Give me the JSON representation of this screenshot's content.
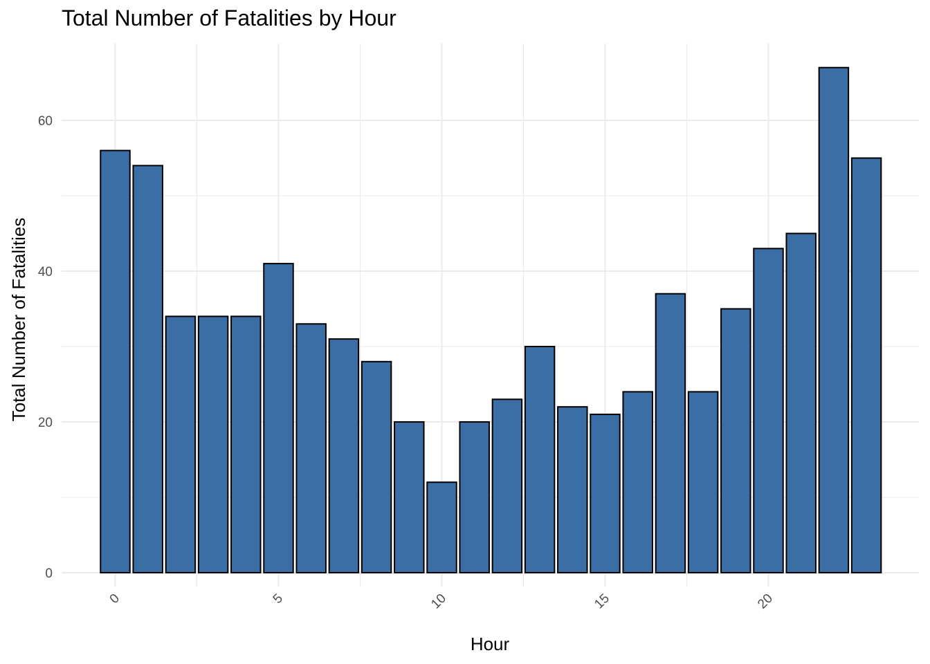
{
  "chart_data": {
    "type": "bar",
    "title": "Total Number of Fatalities by Hour",
    "xlabel": "Hour",
    "ylabel": "Total Number of Fatalities",
    "x": [
      0,
      1,
      2,
      3,
      4,
      5,
      6,
      7,
      8,
      9,
      10,
      11,
      12,
      13,
      14,
      15,
      16,
      17,
      18,
      19,
      20,
      21,
      22,
      23
    ],
    "values": [
      56,
      54,
      34,
      34,
      34,
      41,
      33,
      31,
      28,
      20,
      12,
      20,
      23,
      30,
      22,
      21,
      24,
      37,
      24,
      35,
      43,
      45,
      67,
      55
    ],
    "x_ticks": [
      0,
      5,
      10,
      15,
      20
    ],
    "y_ticks": [
      0,
      20,
      40,
      60
    ],
    "ylim": [
      0,
      70
    ],
    "xlim": [
      -1,
      24
    ],
    "grid": true,
    "bar_color": "#3a6ea5",
    "bar_edge_color": "#000000",
    "grid_color": "#ebebeb"
  }
}
